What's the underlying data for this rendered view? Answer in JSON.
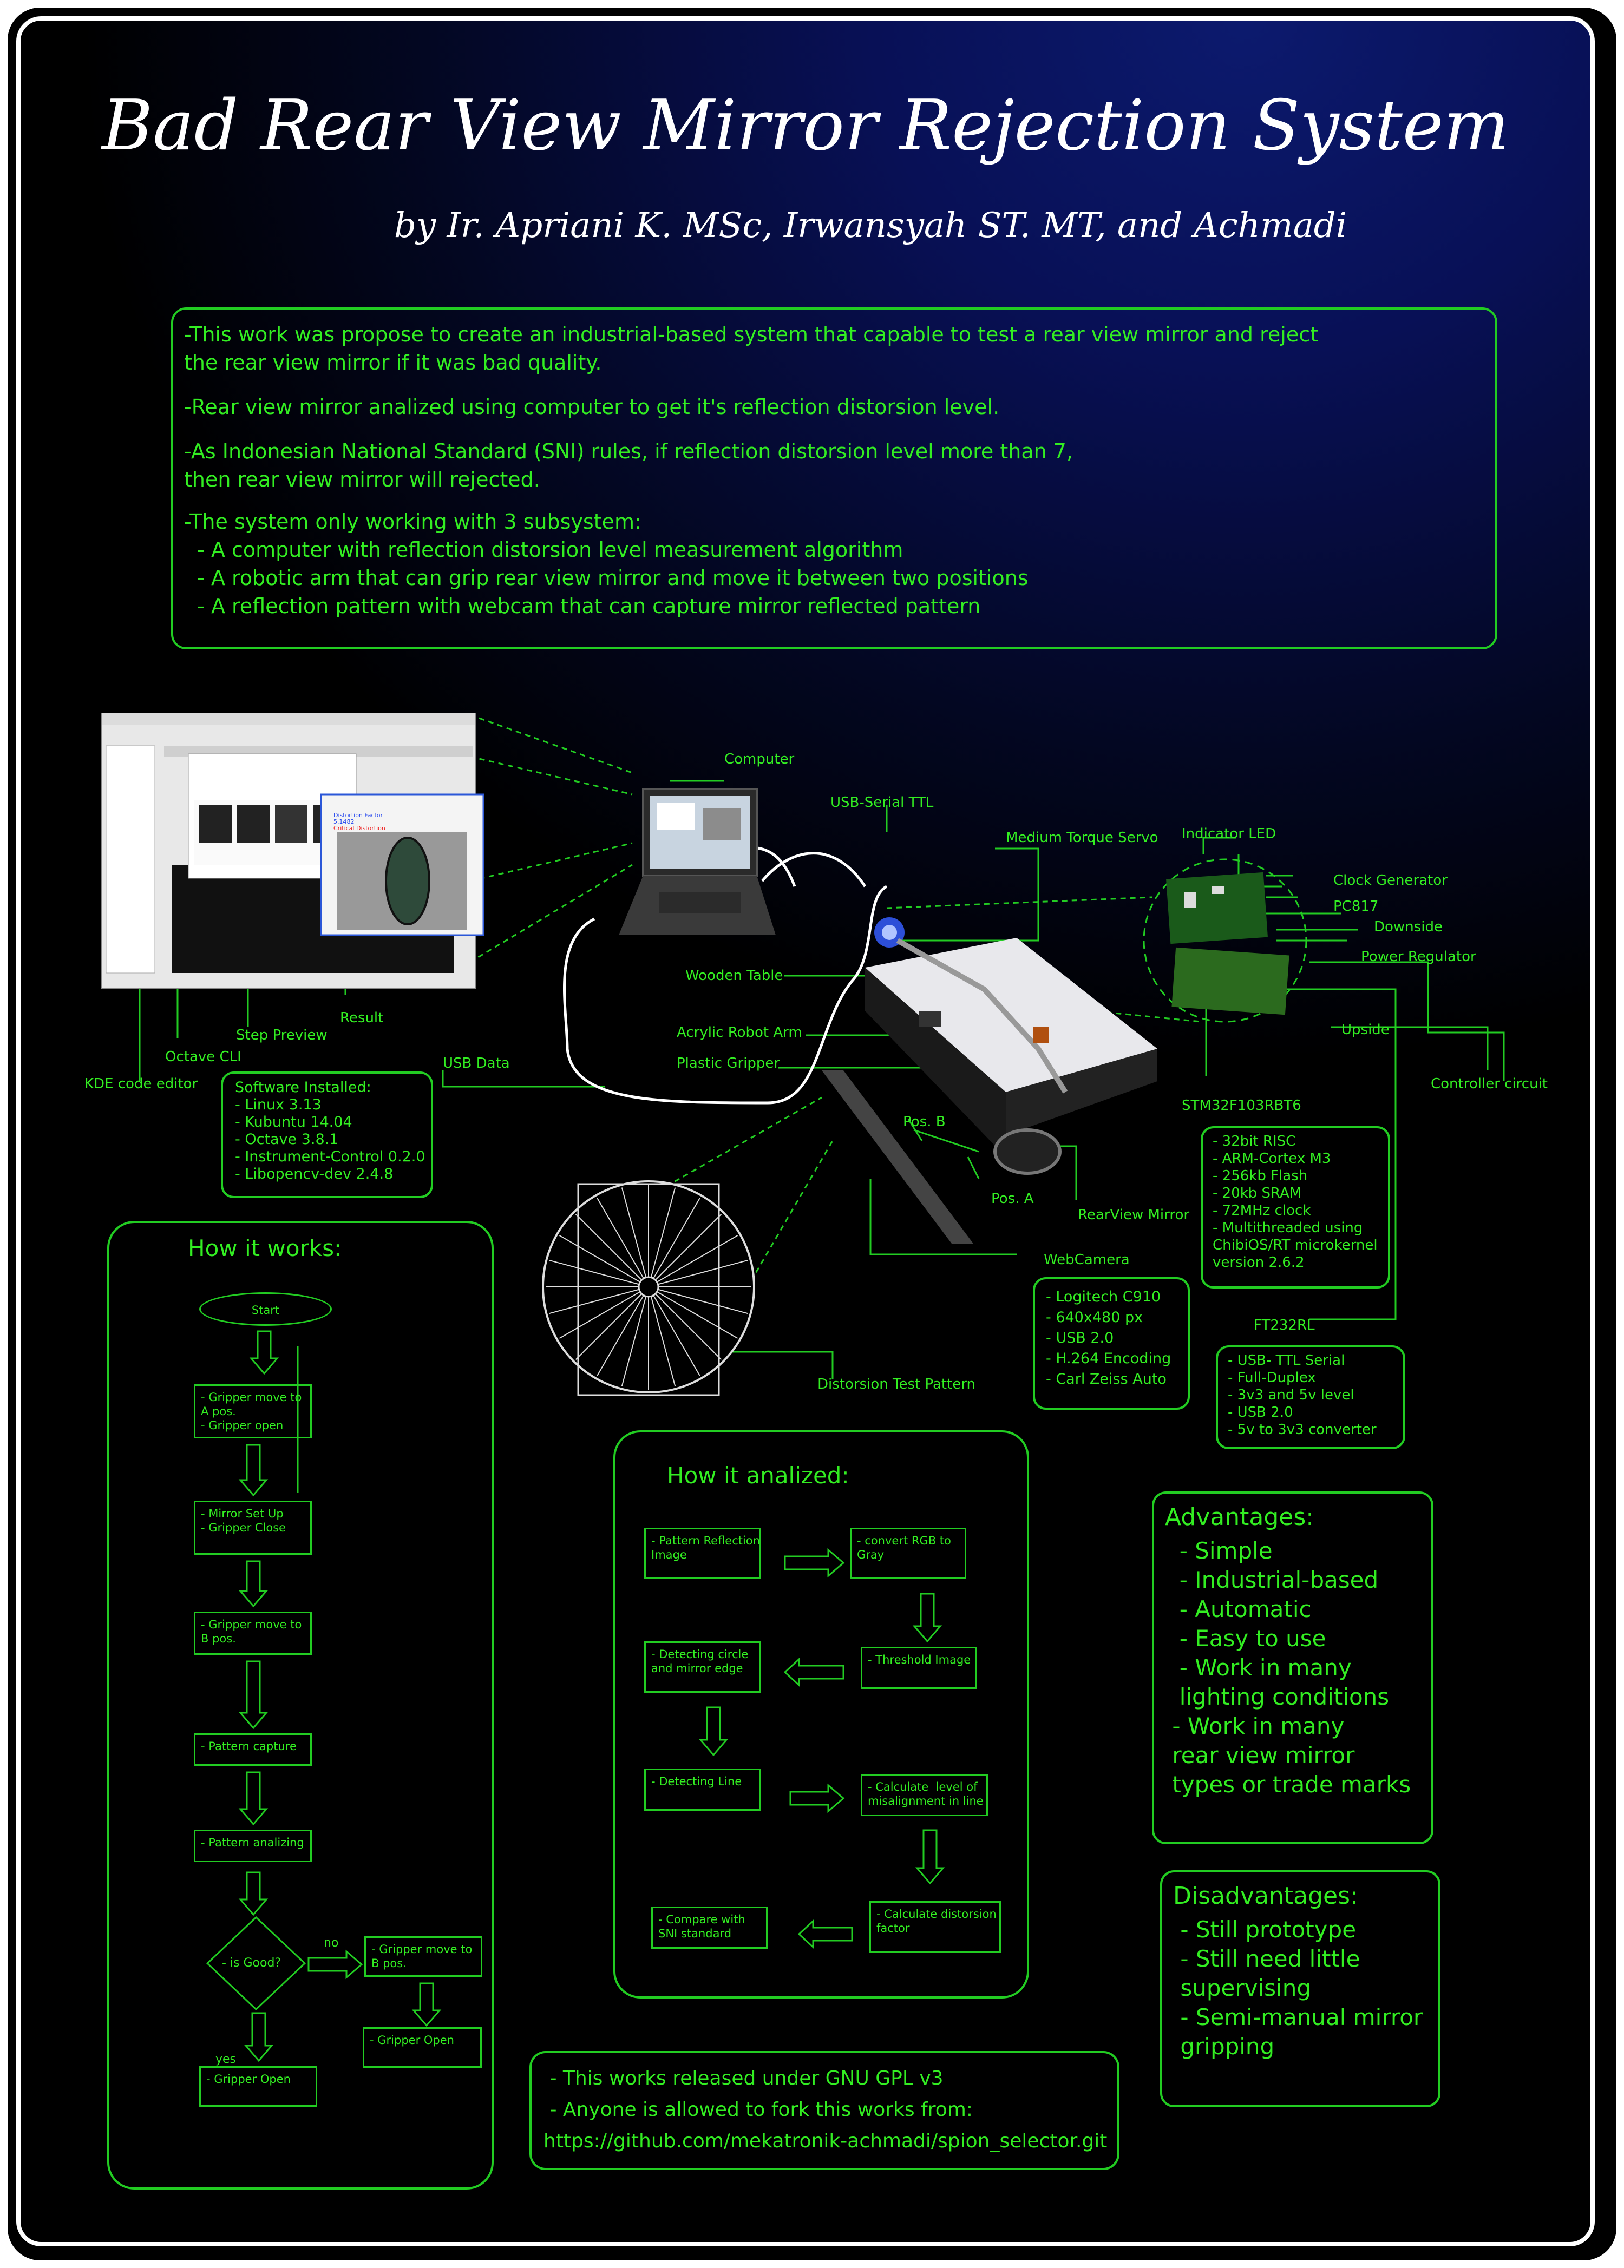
{
  "header": {
    "title": "Bad Rear View Mirror Rejection System",
    "authors": "by Ir. Apriani K. MSc, Irwansyah ST. MT, and Achmadi"
  },
  "intro": {
    "p1": [
      "-This work was propose to create an industrial-based system that capable to test a rear view mirror and reject",
      "the rear view mirror if it was bad quality."
    ],
    "p2": "-Rear view mirror analized using computer to get it's reflection distorsion level.",
    "p3": [
      "-As Indonesian National Standard (SNI) rules, if reflection distorsion level more than 7,",
      "then rear view mirror will rejected."
    ],
    "p4": [
      "-The system only working with 3 subsystem:",
      "  - A computer with reflection distorsion level measurement algorithm",
      "  - A robotic arm that can grip rear view mirror and move it between two positions",
      "  - A reflection pattern with webcam that can capture mirror reflected pattern"
    ]
  },
  "diagram": {
    "labels": {
      "computer": "Computer",
      "usb_serial": "USB-Serial TTL",
      "servo": "Medium Torque Servo",
      "indicator_led": "Indicator LED",
      "clock_gen": "Clock Generator",
      "pc817": "PC817",
      "downside": "Downside",
      "power_reg": "Power Regulator",
      "upside": "Upside",
      "controller": "Controller circuit",
      "stm32": "STM32F103RBT6",
      "ft232": "FT232RL",
      "wooden_table": "Wooden Table",
      "robot_arm": "Acrylic Robot Arm",
      "gripper": "Plastic Gripper",
      "usb_data": "USB Data",
      "pos_b": "Pos. B",
      "pos_a": "Pos. A",
      "rearview": "RearView Mirror",
      "webcam": "WebCamera",
      "pattern": "Distorsion Test Pattern",
      "kde": "KDE code editor",
      "octave": "Octave CLI",
      "step": "Step Preview",
      "result": "Result"
    },
    "screenshot_text": {
      "detection": "Distortion Factor",
      "value": "5.1482",
      "status": "Critical Distortion"
    },
    "software": [
      "Software Installed:",
      "- Linux 3.13",
      "- Kubuntu 14.04",
      "- Octave 3.8.1",
      "- Instrument-Control 0.2.0",
      "- Libopencv-dev 2.4.8"
    ],
    "mcu": [
      "- 32bit RISC",
      "- ARM-Cortex M3",
      "- 256kb Flash",
      "- 20kb SRAM",
      "- 72MHz clock",
      "- Multithreaded using",
      "ChibiOS/RT microkernel",
      "version 2.6.2"
    ],
    "webcam_spec": [
      "- Logitech C910",
      "- 640x480 px",
      "- USB 2.0",
      "- H.264 Encoding",
      "- Carl Zeiss Auto"
    ],
    "ft232_spec": [
      "- USB- TTL Serial",
      "- Full-Duplex",
      "- 3v3 and 5v level",
      "- USB 2.0",
      "- 5v to 3v3 converter"
    ]
  },
  "how_it_works": {
    "title": "How it works:",
    "start": "Start",
    "steps": [
      [
        "- Gripper move to",
        "A pos.",
        "- Gripper open"
      ],
      [
        "- Mirror Set Up",
        "- Gripper Close"
      ],
      [
        "- Gripper move to",
        "B pos."
      ],
      [
        "- Pattern capture"
      ],
      [
        "- Pattern analizing"
      ]
    ],
    "decision": "- is Good?",
    "no": "no",
    "yes": "yes",
    "no_box": [
      "- Gripper move to",
      "B pos."
    ],
    "no_end": [
      "- Gripper Open"
    ],
    "yes_end": [
      "- Gripper Open"
    ]
  },
  "how_analized": {
    "title": "How it analized:",
    "boxes": [
      [
        "- Pattern Reflection",
        "Image"
      ],
      [
        "- convert RGB to",
        "Gray"
      ],
      [
        "- Threshold Image"
      ],
      [
        "- Detecting circle",
        "and mirror edge"
      ],
      [
        "- Detecting Line"
      ],
      [
        "- Calculate  level of",
        "misalignment in line"
      ],
      [
        "- Calculate distorsion",
        "factor"
      ],
      [
        "- Compare with",
        "SNI standard"
      ]
    ]
  },
  "advantages": {
    "title": "Advantages:",
    "items": [
      "  - Simple",
      "  - Industrial-based",
      "  - Automatic",
      "  - Easy to use",
      "  - Work in many",
      "  lighting conditions",
      " - Work in many",
      " rear view mirror",
      " types or trade marks"
    ]
  },
  "disadvantages": {
    "title": "Disadvantages:",
    "items": [
      " - Still prototype",
      " - Still need little",
      " supervising",
      " - Semi-manual mirror",
      " gripping"
    ]
  },
  "license": {
    "line1": " - This works released under GNU GPL v3",
    "line2": " - Anyone is allowed to fork this works from:",
    "url": "https://github.com/mekatronik-achmadi/spion_selector.git"
  },
  "colors": {
    "accent": "#33ee22",
    "frame": "#ffffff",
    "bg_top": "#0c1a6e",
    "bg_bottom": "#000000"
  }
}
